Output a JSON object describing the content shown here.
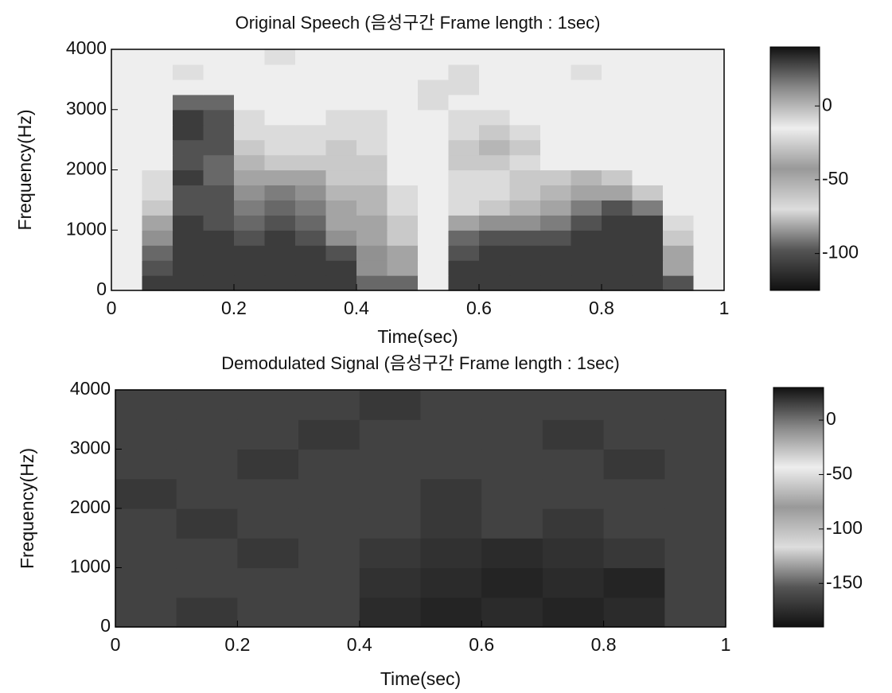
{
  "chart_data": [
    {
      "type": "heatmap",
      "title": "Original Speech (음성구간 Frame length : 1sec)",
      "x_label": "Time(sec)",
      "y_label": "Frequency(Hz)",
      "x": [
        0.025,
        0.075,
        0.125,
        0.175,
        0.225,
        0.275,
        0.325,
        0.375,
        0.425,
        0.475,
        0.525,
        0.575,
        0.625,
        0.675,
        0.725,
        0.775,
        0.825,
        0.875,
        0.925,
        0.975
      ],
      "y": [
        125,
        375,
        625,
        875,
        1125,
        1375,
        1625,
        1875,
        2125,
        2375,
        2625,
        2875,
        3125,
        3375,
        3625,
        3875
      ],
      "z": [
        [
          -15,
          30,
          30,
          30,
          30,
          30,
          30,
          30,
          20,
          20,
          -15,
          30,
          30,
          30,
          30,
          30,
          30,
          30,
          25,
          -15
        ],
        [
          -15,
          25,
          30,
          30,
          30,
          30,
          30,
          30,
          10,
          5,
          -15,
          30,
          30,
          30,
          30,
          30,
          30,
          30,
          5,
          -15
        ],
        [
          -15,
          20,
          30,
          30,
          30,
          30,
          30,
          25,
          10,
          5,
          -15,
          25,
          30,
          30,
          30,
          30,
          30,
          30,
          5,
          -15
        ],
        [
          -15,
          10,
          30,
          30,
          25,
          30,
          25,
          10,
          5,
          -5,
          -15,
          20,
          25,
          25,
          25,
          30,
          30,
          30,
          -5,
          -15
        ],
        [
          -15,
          5,
          30,
          25,
          20,
          25,
          20,
          5,
          5,
          -5,
          -15,
          5,
          10,
          10,
          15,
          25,
          30,
          30,
          -10,
          -15
        ],
        [
          -15,
          -5,
          25,
          25,
          15,
          20,
          15,
          5,
          0,
          -10,
          -15,
          -10,
          -5,
          0,
          5,
          15,
          25,
          15,
          -15,
          -15
        ],
        [
          -15,
          -10,
          25,
          25,
          10,
          15,
          10,
          0,
          0,
          -10,
          -15,
          -10,
          -10,
          -5,
          0,
          5,
          5,
          -5,
          -15,
          -15
        ],
        [
          -15,
          -10,
          30,
          20,
          5,
          5,
          5,
          -5,
          -5,
          -15,
          -15,
          -10,
          -10,
          -5,
          -5,
          0,
          -5,
          -15,
          -15,
          -15
        ],
        [
          -15,
          -15,
          25,
          20,
          0,
          -5,
          -5,
          -5,
          -5,
          -15,
          -15,
          -5,
          -5,
          -10,
          -15,
          -15,
          -15,
          -15,
          -15,
          -15
        ],
        [
          -15,
          -15,
          25,
          25,
          -5,
          -10,
          -10,
          -5,
          -10,
          -15,
          -15,
          -5,
          0,
          -5,
          -15,
          -15,
          -15,
          -15,
          -15,
          -15
        ],
        [
          -15,
          -15,
          30,
          25,
          -10,
          -10,
          -10,
          -10,
          -10,
          -15,
          -15,
          -10,
          -5,
          -10,
          -15,
          -15,
          -15,
          -15,
          -15,
          -15
        ],
        [
          -15,
          -15,
          30,
          25,
          -10,
          -15,
          -15,
          -10,
          -10,
          -15,
          -15,
          -10,
          -10,
          -15,
          -15,
          -15,
          -15,
          -15,
          -15,
          -15
        ],
        [
          -15,
          -15,
          20,
          20,
          -15,
          -15,
          -15,
          -15,
          -15,
          -15,
          -10,
          -15,
          -15,
          -15,
          -15,
          -15,
          -15,
          -15,
          -15,
          -15
        ],
        [
          -15,
          -15,
          -15,
          -15,
          -15,
          -15,
          -15,
          -15,
          -15,
          -15,
          -10,
          -10,
          -15,
          -15,
          -15,
          -15,
          -15,
          -15,
          -15,
          -15
        ],
        [
          -15,
          -15,
          -20,
          -15,
          -15,
          -15,
          -15,
          -15,
          -15,
          -15,
          -15,
          -10,
          -15,
          -15,
          -15,
          -20,
          -15,
          -15,
          -15,
          -15
        ],
        [
          -15,
          -15,
          -15,
          -15,
          -15,
          -20,
          -15,
          -15,
          -15,
          -15,
          -15,
          -15,
          -15,
          -15,
          -15,
          -15,
          -15,
          -15,
          -15,
          -15
        ]
      ],
      "xlim": [
        0,
        1
      ],
      "ylim": [
        0,
        4000
      ],
      "xticks": [
        0,
        0.2,
        0.4,
        0.6,
        0.8,
        1
      ],
      "yticks": [
        0,
        1000,
        2000,
        3000,
        4000
      ],
      "clim": [
        -125,
        40
      ],
      "cticks": [
        0,
        -50,
        -100
      ],
      "colormap": [
        "#111111",
        "#555555",
        "#dddddd",
        "#999999",
        "#eeeeee",
        "#888888",
        "#111111"
      ]
    },
    {
      "type": "heatmap",
      "title": "Demodulated Signal (음성구간 Frame length : 1sec)",
      "x_label": "Time(sec)",
      "y_label": "Frequency(Hz)",
      "x": [
        0.05,
        0.15,
        0.25,
        0.35,
        0.45,
        0.55,
        0.65,
        0.75,
        0.85,
        0.95
      ],
      "y": [
        250,
        750,
        1250,
        1750,
        2250,
        2750,
        3250,
        3750
      ],
      "z": [
        [
          15,
          18,
          15,
          15,
          22,
          24,
          22,
          24,
          22,
          15
        ],
        [
          15,
          15,
          15,
          15,
          20,
          22,
          24,
          22,
          24,
          15
        ],
        [
          15,
          15,
          18,
          15,
          18,
          20,
          22,
          20,
          18,
          15
        ],
        [
          15,
          18,
          15,
          15,
          15,
          18,
          15,
          18,
          15,
          15
        ],
        [
          18,
          15,
          15,
          15,
          15,
          18,
          15,
          15,
          15,
          15
        ],
        [
          15,
          15,
          18,
          15,
          15,
          15,
          15,
          15,
          18,
          15
        ],
        [
          15,
          15,
          15,
          18,
          15,
          15,
          15,
          18,
          15,
          15
        ],
        [
          15,
          15,
          15,
          15,
          18,
          15,
          15,
          15,
          15,
          15
        ]
      ],
      "xlim": [
        0,
        1
      ],
      "ylim": [
        0,
        4000
      ],
      "xticks": [
        0,
        0.2,
        0.4,
        0.6,
        0.8,
        1
      ],
      "yticks": [
        0,
        1000,
        2000,
        3000,
        4000
      ],
      "clim": [
        -190,
        30
      ],
      "cticks": [
        0,
        -50,
        -100,
        -150
      ],
      "colormap": [
        "#111111",
        "#555555",
        "#dddddd",
        "#999999",
        "#eeeeee",
        "#888888",
        "#111111"
      ]
    }
  ]
}
